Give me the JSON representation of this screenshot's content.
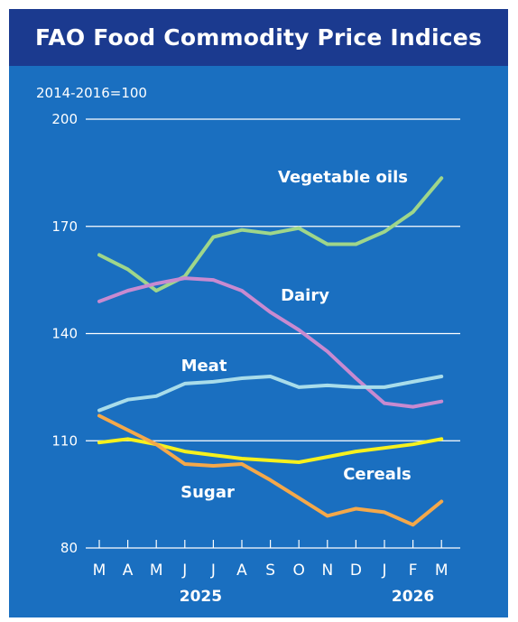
{
  "title": "FAO Food Commodity Price Indices",
  "base_note": "2014-2016=100",
  "chart_data": {
    "type": "line",
    "title": "FAO Food Commodity Price Indices",
    "x": [
      "M",
      "A",
      "M",
      "J",
      "J",
      "A",
      "S",
      "O",
      "N",
      "D",
      "J",
      "F",
      "M"
    ],
    "year_labels": [
      {
        "label": "2025",
        "index": 4
      },
      {
        "label": "2026",
        "index": 11
      }
    ],
    "ylim": [
      80,
      200
    ],
    "yticks": [
      80,
      110,
      140,
      170,
      200
    ],
    "grid": true,
    "series": [
      {
        "name": "Vegetable oils",
        "color": "#9fd68a",
        "values": [
          162,
          158,
          152,
          156,
          167,
          169,
          168,
          169.5,
          165,
          165,
          168.5,
          174,
          183.5
        ]
      },
      {
        "name": "Dairy",
        "color": "#c88ad0",
        "values": [
          149,
          152,
          154,
          155.5,
          155,
          152,
          146,
          141,
          135,
          127.5,
          120.5,
          119.5,
          121
        ]
      },
      {
        "name": "Meat",
        "color": "#a8dcea",
        "values": [
          118.5,
          121.5,
          122.5,
          126,
          126.5,
          127.5,
          128,
          125,
          125.5,
          125,
          125,
          126.5,
          128
        ]
      },
      {
        "name": "Cereals",
        "color": "#f6f11e",
        "values": [
          109.5,
          110.5,
          109,
          107,
          106,
          105,
          104.5,
          104,
          105.5,
          107,
          108,
          109,
          110.5
        ]
      },
      {
        "name": "Sugar",
        "color": "#f4a84a",
        "values": [
          117,
          113,
          109,
          103.5,
          103,
          103.5,
          99,
          94,
          89,
          91,
          90,
          86.5,
          93
        ]
      }
    ]
  },
  "colors": {
    "frame": "#1b3a8f",
    "plot_background": "#1a6fc0",
    "gridline": "#ffffff",
    "text": "#ffffff"
  }
}
